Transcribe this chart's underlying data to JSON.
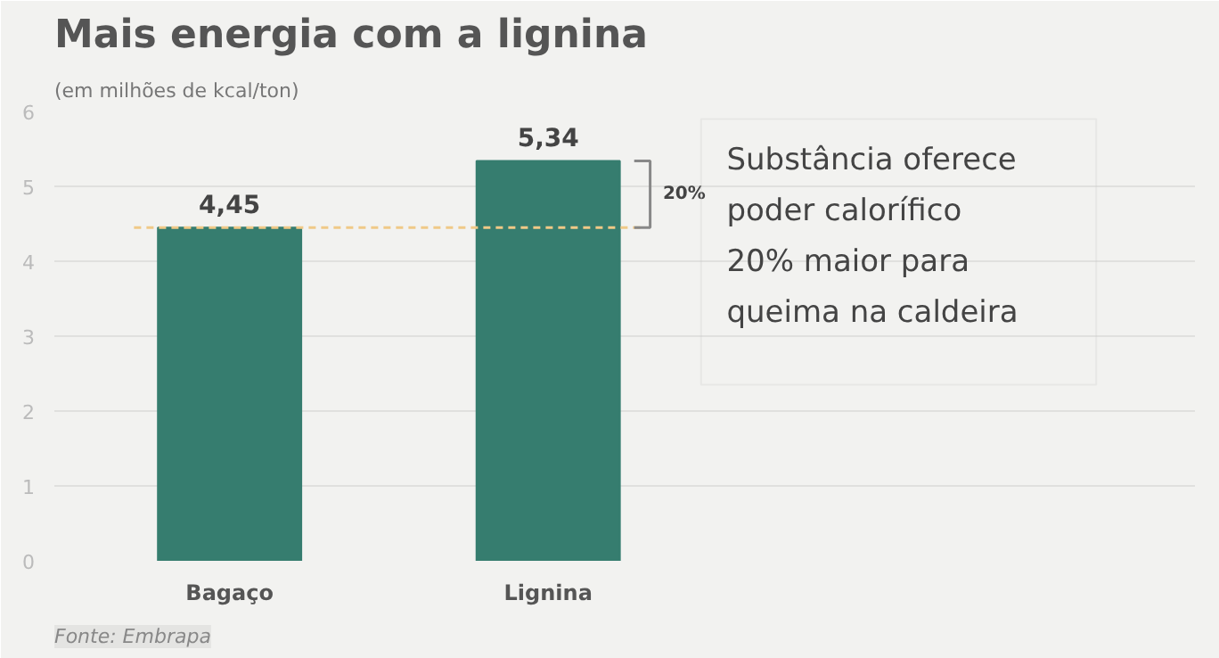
{
  "chart_data": {
    "type": "bar",
    "title": "Mais energia com a lignina",
    "subtitle": "(em milhões de kcal/ton)",
    "categories": [
      "Bagaço",
      "Lignina"
    ],
    "values": [
      4.45,
      5.34
    ],
    "color": "#367d6f",
    "value_labels": [
      "4,45",
      "5,34"
    ],
    "ylim": [
      0,
      6
    ],
    "yticks": [
      0,
      1,
      2,
      3,
      4,
      5,
      6
    ],
    "grid": "y",
    "ref_lines": [
      {
        "axis": "y",
        "value": 4.45,
        "label": null,
        "color": "#f0c987",
        "line_style": "dashed"
      }
    ],
    "annotations": [
      "Substância oferece\npoder calorífico\n20% maior para\nqueima na caldeira",
      "20%",
      "Fonte: Embrapa"
    ]
  }
}
